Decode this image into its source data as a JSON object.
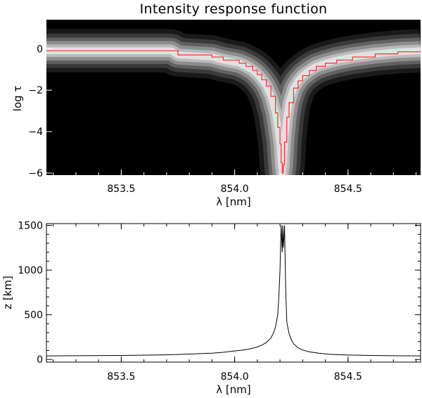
{
  "chart_data": [
    {
      "type": "heatmap",
      "title": "Intensity response function",
      "xlabel": "λ [nm]",
      "ylabel": "log τ",
      "xlim": [
        853.17,
        854.82
      ],
      "ylim": [
        -6.1,
        1.4
      ],
      "x_ticks": [
        853.5,
        854.0,
        854.5
      ],
      "x_tick_labels": [
        "853.5",
        "854.0",
        "854.5"
      ],
      "y_ticks": [
        0,
        -2,
        -4,
        -6
      ],
      "y_tick_labels": [
        "0",
        "−2",
        "−4",
        "−6"
      ],
      "line_center": 854.21,
      "colormap": "grayscale (black background, white response band)",
      "overlay_line": {
        "description": "log tau of maximum response",
        "color": "#ff2a2a",
        "x": [
          853.17,
          853.72,
          853.75,
          853.9,
          853.95,
          854.02,
          854.05,
          854.08,
          854.1,
          854.12,
          854.14,
          854.16,
          854.18,
          854.19,
          854.2,
          854.205,
          854.21,
          854.215,
          854.22,
          854.23,
          854.24,
          854.26,
          854.28,
          854.3,
          854.33,
          854.36,
          854.4,
          854.45,
          854.52,
          854.62,
          854.72,
          854.82
        ],
        "y": [
          -0.1,
          -0.1,
          -0.3,
          -0.4,
          -0.55,
          -0.7,
          -0.85,
          -1.05,
          -1.25,
          -1.5,
          -1.8,
          -2.3,
          -3.1,
          -3.8,
          -4.6,
          -5.5,
          -6.0,
          -5.6,
          -4.5,
          -3.3,
          -2.6,
          -1.9,
          -1.55,
          -1.3,
          -1.05,
          -0.85,
          -0.7,
          -0.55,
          -0.4,
          -0.25,
          -0.15,
          -0.1
        ]
      },
      "band_halfwidth": 0.55
    },
    {
      "type": "line",
      "title": "",
      "xlabel": "λ [nm]",
      "ylabel": "z [km]",
      "xlim": [
        853.17,
        854.82
      ],
      "ylim": [
        -30,
        1520
      ],
      "x_ticks": [
        853.5,
        854.0,
        854.5
      ],
      "x_tick_labels": [
        "853.5",
        "854.0",
        "854.5"
      ],
      "y_ticks": [
        0,
        500,
        1000,
        1500
      ],
      "y_tick_labels": [
        "0",
        "500",
        "1000",
        "1500"
      ],
      "series": [
        {
          "color": "#000000",
          "x": [
            853.17,
            853.3,
            853.5,
            853.7,
            853.8,
            853.9,
            853.95,
            854.0,
            854.05,
            854.08,
            854.1,
            854.12,
            854.14,
            854.16,
            854.17,
            854.18,
            854.19,
            854.195,
            854.2,
            854.205,
            854.21,
            854.212,
            854.215,
            854.22,
            854.225,
            854.23,
            854.24,
            854.25,
            854.26,
            854.28,
            854.3,
            854.33,
            854.37,
            854.42,
            854.5,
            854.6,
            854.7,
            854.82
          ],
          "y": [
            40,
            42,
            45,
            52,
            60,
            70,
            80,
            95,
            110,
            125,
            140,
            160,
            190,
            240,
            290,
            360,
            500,
            700,
            1000,
            1500,
            1200,
            1500,
            1250,
            1500,
            800,
            420,
            290,
            220,
            175,
            130,
            105,
            85,
            70,
            58,
            50,
            45,
            42,
            40
          ]
        }
      ]
    }
  ]
}
